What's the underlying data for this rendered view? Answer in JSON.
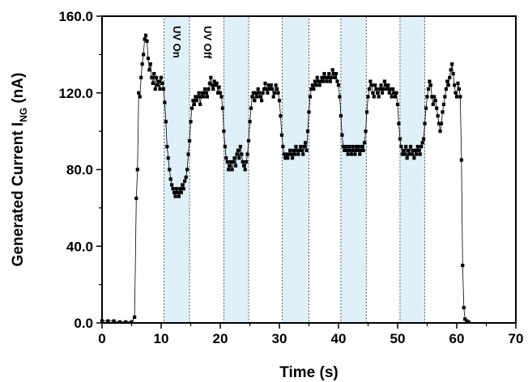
{
  "chart_data": {
    "type": "scatter",
    "title": "",
    "xlabel": "Time (s)",
    "ylabel": "Generated Current I",
    "ylabel_subscript": "NG",
    "ylabel_unit": "(nA)",
    "xlim": [
      0,
      70
    ],
    "ylim": [
      0,
      160
    ],
    "x_ticks": [
      "0",
      "10",
      "20",
      "30",
      "40",
      "50",
      "60",
      "70"
    ],
    "y_ticks": [
      "0.0",
      "40.0",
      "80.0",
      "120.0",
      "160.0"
    ],
    "grid": false,
    "legend": "none",
    "uv_intervals": [
      [
        10.5,
        14.8
      ],
      [
        20.6,
        24.8
      ],
      [
        30.5,
        35.0
      ],
      [
        40.4,
        44.7
      ],
      [
        50.4,
        54.6
      ]
    ],
    "annotations": [
      "UV On",
      "UV Off"
    ],
    "colors": {
      "uv_band": "#dff0f8",
      "marker": "#000000",
      "line": "#000000"
    },
    "series": [
      {
        "values": [
          [
            0,
            1
          ],
          [
            1,
            1
          ],
          [
            2,
            1
          ],
          [
            3,
            0.5
          ],
          [
            4,
            0.5
          ],
          [
            5,
            0.5
          ],
          [
            5.5,
            3
          ],
          [
            5.8,
            65
          ],
          [
            6.0,
            80
          ],
          [
            6.2,
            120
          ],
          [
            6.4,
            118
          ],
          [
            6.6,
            128
          ],
          [
            6.8,
            135
          ],
          [
            7.0,
            140
          ],
          [
            7.2,
            148
          ],
          [
            7.4,
            150
          ],
          [
            7.6,
            147
          ],
          [
            7.8,
            138
          ],
          [
            8.0,
            132
          ],
          [
            8.2,
            135
          ],
          [
            8.4,
            128
          ],
          [
            8.6,
            125
          ],
          [
            8.8,
            130
          ],
          [
            9.0,
            122
          ],
          [
            9.2,
            128
          ],
          [
            9.4,
            124
          ],
          [
            9.6,
            126
          ],
          [
            9.8,
            122
          ],
          [
            10.0,
            128
          ],
          [
            10.2,
            125
          ],
          [
            10.4,
            122
          ],
          [
            10.6,
            115
          ],
          [
            10.8,
            105
          ],
          [
            11.0,
            92
          ],
          [
            11.2,
            86
          ],
          [
            11.4,
            80
          ],
          [
            11.6,
            75
          ],
          [
            11.8,
            72
          ],
          [
            12.0,
            70
          ],
          [
            12.2,
            68
          ],
          [
            12.4,
            66
          ],
          [
            12.6,
            70
          ],
          [
            12.8,
            68
          ],
          [
            13.0,
            66
          ],
          [
            13.2,
            70
          ],
          [
            13.4,
            68
          ],
          [
            13.6,
            72
          ],
          [
            13.8,
            70
          ],
          [
            14.0,
            74
          ],
          [
            14.2,
            76
          ],
          [
            14.4,
            80
          ],
          [
            14.6,
            88
          ],
          [
            14.8,
            95
          ],
          [
            15.0,
            105
          ],
          [
            15.2,
            112
          ],
          [
            15.4,
            116
          ],
          [
            15.6,
            114
          ],
          [
            15.8,
            118
          ],
          [
            16.0,
            116
          ],
          [
            16.2,
            118
          ],
          [
            16.4,
            120
          ],
          [
            16.6,
            114
          ],
          [
            16.8,
            118
          ],
          [
            17.0,
            120
          ],
          [
            17.2,
            118
          ],
          [
            17.4,
            122
          ],
          [
            17.6,
            120
          ],
          [
            17.8,
            118
          ],
          [
            18.0,
            122
          ],
          [
            18.2,
            125
          ],
          [
            18.4,
            128
          ],
          [
            18.6,
            124
          ],
          [
            18.8,
            122
          ],
          [
            19.0,
            126
          ],
          [
            19.2,
            124
          ],
          [
            19.4,
            125
          ],
          [
            19.6,
            120
          ],
          [
            19.8,
            123
          ],
          [
            20.0,
            120
          ],
          [
            20.2,
            118
          ],
          [
            20.4,
            112
          ],
          [
            20.6,
            100
          ],
          [
            20.8,
            92
          ],
          [
            21.0,
            86
          ],
          [
            21.2,
            84
          ],
          [
            21.4,
            80
          ],
          [
            21.6,
            82
          ],
          [
            21.8,
            84
          ],
          [
            22.0,
            80
          ],
          [
            22.2,
            84
          ],
          [
            22.4,
            86
          ],
          [
            22.6,
            82
          ],
          [
            22.8,
            88
          ],
          [
            23.0,
            90
          ],
          [
            23.2,
            86
          ],
          [
            23.4,
            92
          ],
          [
            23.6,
            88
          ],
          [
            23.8,
            84
          ],
          [
            24.0,
            82
          ],
          [
            24.2,
            80
          ],
          [
            24.4,
            84
          ],
          [
            24.6,
            88
          ],
          [
            24.8,
            95
          ],
          [
            25.0,
            105
          ],
          [
            25.2,
            112
          ],
          [
            25.4,
            118
          ],
          [
            25.6,
            120
          ],
          [
            25.8,
            116
          ],
          [
            26.0,
            120
          ],
          [
            26.2,
            118
          ],
          [
            26.4,
            122
          ],
          [
            26.6,
            120
          ],
          [
            26.8,
            118
          ],
          [
            27.0,
            116
          ],
          [
            27.2,
            120
          ],
          [
            27.4,
            122
          ],
          [
            27.6,
            125
          ],
          [
            27.8,
            122
          ],
          [
            28.0,
            120
          ],
          [
            28.2,
            124
          ],
          [
            28.4,
            122
          ],
          [
            28.6,
            124
          ],
          [
            28.8,
            122
          ],
          [
            29.0,
            118
          ],
          [
            29.2,
            120
          ],
          [
            29.4,
            124
          ],
          [
            29.6,
            122
          ],
          [
            29.8,
            120
          ],
          [
            30.0,
            116
          ],
          [
            30.2,
            108
          ],
          [
            30.4,
            98
          ],
          [
            30.6,
            92
          ],
          [
            30.8,
            88
          ],
          [
            31.0,
            86
          ],
          [
            31.2,
            88
          ],
          [
            31.4,
            86
          ],
          [
            31.6,
            88
          ],
          [
            31.8,
            90
          ],
          [
            32.0,
            88
          ],
          [
            32.2,
            86
          ],
          [
            32.4,
            90
          ],
          [
            32.6,
            88
          ],
          [
            32.8,
            92
          ],
          [
            33.0,
            90
          ],
          [
            33.2,
            88
          ],
          [
            33.4,
            90
          ],
          [
            33.6,
            92
          ],
          [
            33.8,
            90
          ],
          [
            34.0,
            88
          ],
          [
            34.2,
            92
          ],
          [
            34.4,
            94
          ],
          [
            34.6,
            90
          ],
          [
            34.8,
            100
          ],
          [
            35.0,
            110
          ],
          [
            35.2,
            118
          ],
          [
            35.4,
            122
          ],
          [
            35.6,
            124
          ],
          [
            35.8,
            122
          ],
          [
            36.0,
            126
          ],
          [
            36.2,
            124
          ],
          [
            36.4,
            128
          ],
          [
            36.6,
            126
          ],
          [
            36.8,
            124
          ],
          [
            37.0,
            126
          ],
          [
            37.2,
            128
          ],
          [
            37.4,
            126
          ],
          [
            37.6,
            130
          ],
          [
            37.8,
            128
          ],
          [
            38.0,
            126
          ],
          [
            38.2,
            128
          ],
          [
            38.4,
            130
          ],
          [
            38.6,
            126
          ],
          [
            38.8,
            128
          ],
          [
            39.0,
            132
          ],
          [
            39.2,
            130
          ],
          [
            39.4,
            128
          ],
          [
            39.6,
            130
          ],
          [
            39.8,
            126
          ],
          [
            40.0,
            124
          ],
          [
            40.2,
            118
          ],
          [
            40.4,
            108
          ],
          [
            40.6,
            98
          ],
          [
            40.8,
            92
          ],
          [
            41.0,
            90
          ],
          [
            41.2,
            92
          ],
          [
            41.4,
            90
          ],
          [
            41.6,
            88
          ],
          [
            41.8,
            92
          ],
          [
            42.0,
            90
          ],
          [
            42.2,
            88
          ],
          [
            42.4,
            92
          ],
          [
            42.6,
            90
          ],
          [
            42.8,
            88
          ],
          [
            43.0,
            92
          ],
          [
            43.2,
            90
          ],
          [
            43.4,
            92
          ],
          [
            43.6,
            88
          ],
          [
            43.8,
            90
          ],
          [
            44.0,
            92
          ],
          [
            44.2,
            90
          ],
          [
            44.4,
            94
          ],
          [
            44.6,
            100
          ],
          [
            44.8,
            110
          ],
          [
            45.0,
            118
          ],
          [
            45.2,
            122
          ],
          [
            45.4,
            126
          ],
          [
            45.6,
            124
          ],
          [
            45.8,
            120
          ],
          [
            46.0,
            118
          ],
          [
            46.2,
            124
          ],
          [
            46.4,
            122
          ],
          [
            46.6,
            120
          ],
          [
            46.8,
            118
          ],
          [
            47.0,
            122
          ],
          [
            47.2,
            124
          ],
          [
            47.4,
            120
          ],
          [
            47.6,
            122
          ],
          [
            47.8,
            126
          ],
          [
            48.0,
            124
          ],
          [
            48.2,
            122
          ],
          [
            48.4,
            124
          ],
          [
            48.6,
            120
          ],
          [
            48.8,
            122
          ],
          [
            49.0,
            118
          ],
          [
            49.2,
            122
          ],
          [
            49.4,
            120
          ],
          [
            49.6,
            118
          ],
          [
            49.8,
            120
          ],
          [
            50.0,
            114
          ],
          [
            50.2,
            104
          ],
          [
            50.4,
            96
          ],
          [
            50.6,
            92
          ],
          [
            50.8,
            88
          ],
          [
            51.0,
            90
          ],
          [
            51.2,
            88
          ],
          [
            51.4,
            92
          ],
          [
            51.6,
            86
          ],
          [
            51.8,
            90
          ],
          [
            52.0,
            88
          ],
          [
            52.2,
            92
          ],
          [
            52.4,
            88
          ],
          [
            52.6,
            90
          ],
          [
            52.8,
            86
          ],
          [
            53.0,
            90
          ],
          [
            53.2,
            88
          ],
          [
            53.4,
            92
          ],
          [
            53.6,
            90
          ],
          [
            53.8,
            88
          ],
          [
            54.0,
            92
          ],
          [
            54.2,
            94
          ],
          [
            54.4,
            96
          ],
          [
            54.6,
            104
          ],
          [
            54.8,
            112
          ],
          [
            55.0,
            118
          ],
          [
            55.2,
            122
          ],
          [
            55.4,
            126
          ],
          [
            55.6,
            124
          ],
          [
            55.8,
            118
          ],
          [
            56.0,
            114
          ],
          [
            56.2,
            118
          ],
          [
            56.4,
            116
          ],
          [
            56.6,
            112
          ],
          [
            56.8,
            108
          ],
          [
            57.0,
            104
          ],
          [
            57.2,
            100
          ],
          [
            57.4,
            104
          ],
          [
            57.6,
            110
          ],
          [
            57.8,
            114
          ],
          [
            58.0,
            118
          ],
          [
            58.2,
            122
          ],
          [
            58.4,
            126
          ],
          [
            58.6,
            124
          ],
          [
            58.8,
            128
          ],
          [
            59.0,
            132
          ],
          [
            59.2,
            135
          ],
          [
            59.4,
            130
          ],
          [
            59.6,
            124
          ],
          [
            59.8,
            120
          ],
          [
            60.0,
            118
          ],
          [
            60.2,
            125
          ],
          [
            60.4,
            122
          ],
          [
            60.6,
            118
          ],
          [
            60.8,
            85
          ],
          [
            61.0,
            30
          ],
          [
            61.2,
            8
          ],
          [
            61.4,
            2
          ],
          [
            61.7,
            1
          ],
          [
            62.0,
            0.5
          ]
        ]
      }
    ]
  }
}
